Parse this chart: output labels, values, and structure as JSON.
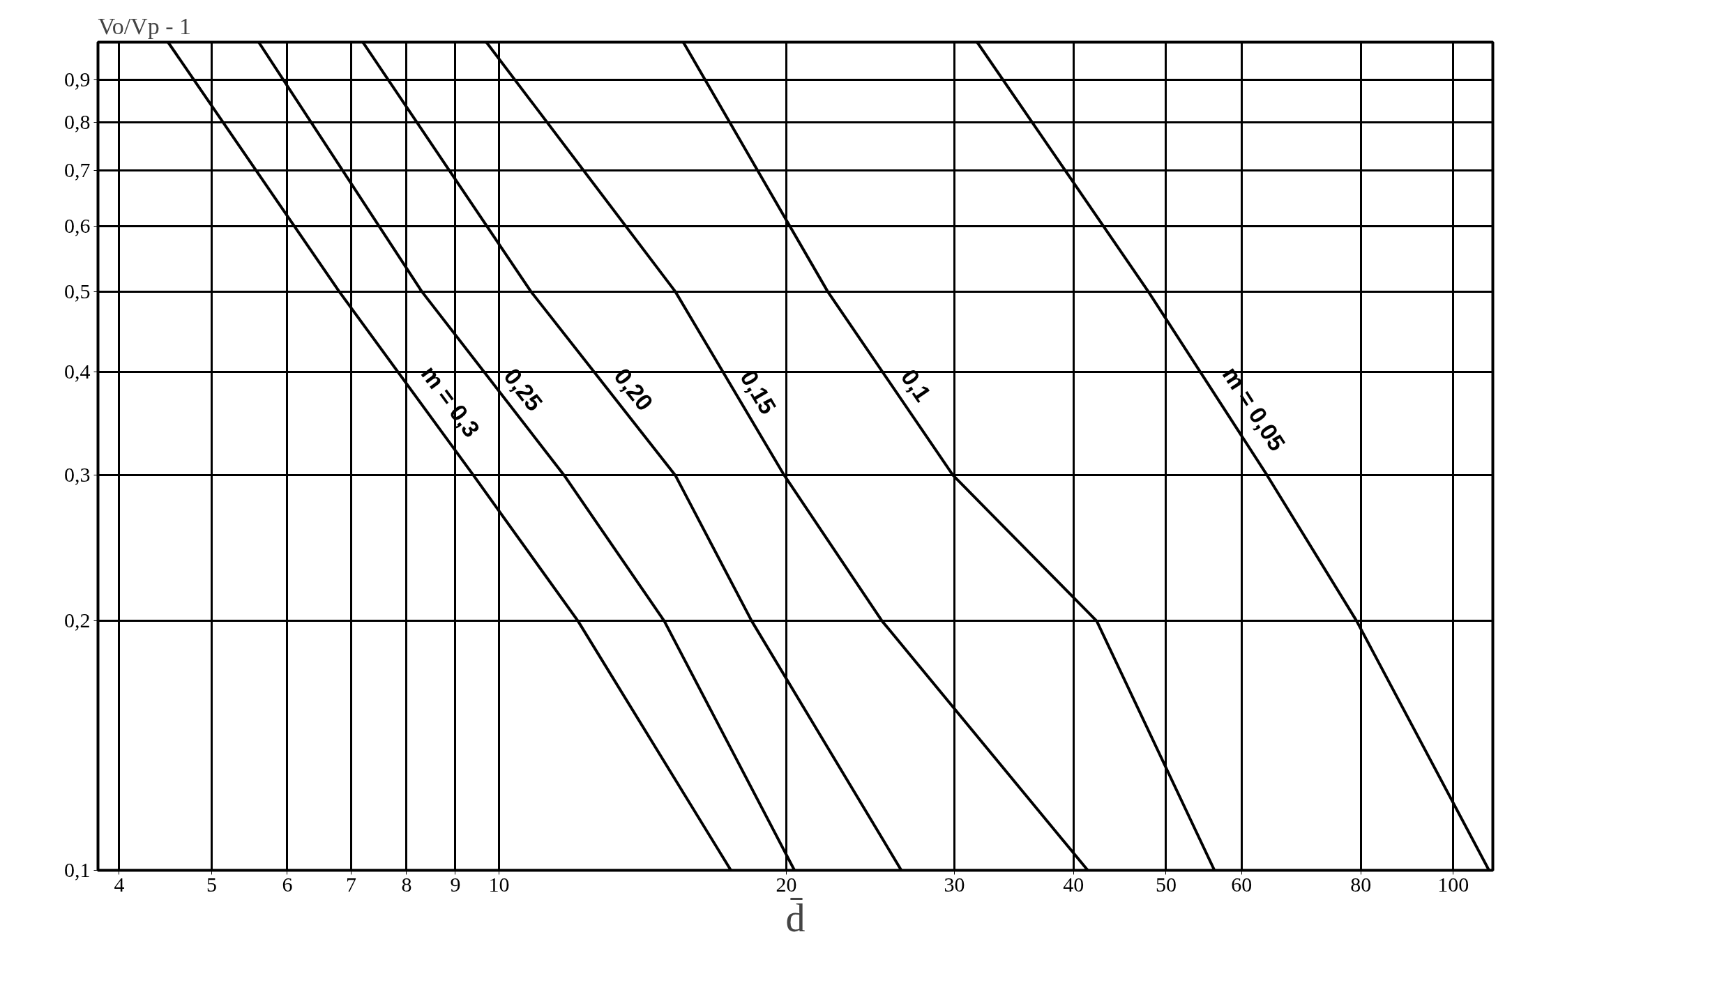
{
  "chart_data": {
    "type": "line",
    "xlabel": "d̄",
    "ylabel": "Vo/Vp - 1",
    "log": "xy",
    "grid": true,
    "marker": "none",
    "line_style": "solid",
    "xlim": [
      3.8,
      110
    ],
    "ylim": [
      0.1,
      1
    ],
    "xticks": [
      4,
      5,
      6,
      7,
      8,
      9,
      10,
      20,
      30,
      40,
      50,
      60,
      80,
      100
    ],
    "yticks": [
      {
        "value": 0.1,
        "label": "0,1"
      },
      {
        "value": 0.2,
        "label": "0,2"
      },
      {
        "value": 0.3,
        "label": "0,3"
      },
      {
        "value": 0.4,
        "label": "0,4"
      },
      {
        "value": 0.5,
        "label": "0,5"
      },
      {
        "value": 0.6,
        "label": "0,6"
      },
      {
        "value": 0.7,
        "label": "0,7"
      },
      {
        "value": 0.8,
        "label": "0,8"
      },
      {
        "value": 0.9,
        "label": "0,9"
      }
    ],
    "series": [
      {
        "name": "m = 0,3",
        "color": "#000000",
        "x": [
          4.5,
          6.8,
          9.4,
          12.1,
          17.5
        ],
        "values": [
          1,
          0.5,
          0.3,
          0.2,
          0.1
        ]
      },
      {
        "name": "0,25",
        "color": "#000000",
        "x": [
          5.6,
          8.3,
          11.7,
          14.9,
          20.4
        ],
        "values": [
          1,
          0.5,
          0.3,
          0.2,
          0.1
        ]
      },
      {
        "name": "0,20",
        "color": "#000000",
        "x": [
          7.2,
          10.8,
          15.3,
          18.4,
          26.4
        ],
        "values": [
          1,
          0.5,
          0.3,
          0.2,
          0.1
        ]
      },
      {
        "name": "0,15",
        "color": "#000000",
        "x": [
          9.7,
          15.3,
          19.9,
          25.2,
          41.4
        ],
        "values": [
          1,
          0.5,
          0.3,
          0.2,
          0.1
        ]
      },
      {
        "name": "0,1",
        "color": "#000000",
        "x": [
          15.6,
          22.1,
          29.9,
          42.3,
          56.2
        ],
        "values": [
          1,
          0.5,
          0.3,
          0.2,
          0.1
        ]
      },
      {
        "name": "m = 0,05",
        "color": "#000000",
        "x": [
          31.7,
          47.9,
          63.8,
          79.2,
          109
        ],
        "values": [
          1,
          0.5,
          0.3,
          0.2,
          0.1
        ]
      }
    ]
  }
}
